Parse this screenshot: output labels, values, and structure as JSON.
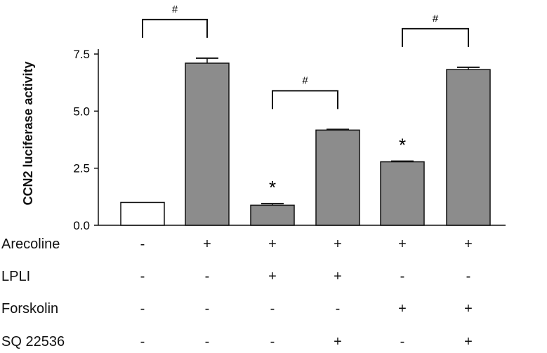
{
  "chart_data": {
    "type": "bar",
    "ylabel": "CCN2 luciferase activity",
    "ylim": [
      0,
      7.5
    ],
    "yticks": [
      "0.0",
      "2.5",
      "5.0",
      "7.5"
    ],
    "values": [
      1.0,
      7.1,
      0.88,
      4.17,
      2.78,
      6.82
    ],
    "errors": [
      0.0,
      0.22,
      0.07,
      0.03,
      0.03,
      0.1
    ],
    "bar_colors": [
      "#ffffff",
      "#8c8c8c",
      "#8c8c8c",
      "#8c8c8c",
      "#8c8c8c",
      "#8c8c8c"
    ],
    "annotations": [
      "",
      "",
      "*",
      "",
      "*",
      ""
    ],
    "brackets": [
      {
        "from": 0,
        "to": 1,
        "label": "#"
      },
      {
        "from": 2,
        "to": 3,
        "label": "#"
      },
      {
        "from": 4,
        "to": 5,
        "label": "#"
      }
    ],
    "treatments": [
      {
        "name": "Arecoline",
        "marks": [
          "-",
          "+",
          "+",
          "+",
          "+",
          "+"
        ]
      },
      {
        "name": "LPLI",
        "marks": [
          "-",
          "-",
          "+",
          "+",
          "-",
          "-"
        ]
      },
      {
        "name": "Forskolin",
        "marks": [
          "-",
          "-",
          "-",
          "-",
          "+",
          "+"
        ]
      },
      {
        "name": "SQ 22536",
        "marks": [
          "-",
          "-",
          "-",
          "+",
          "-",
          "+"
        ]
      }
    ],
    "grid": false,
    "legend": "none"
  }
}
